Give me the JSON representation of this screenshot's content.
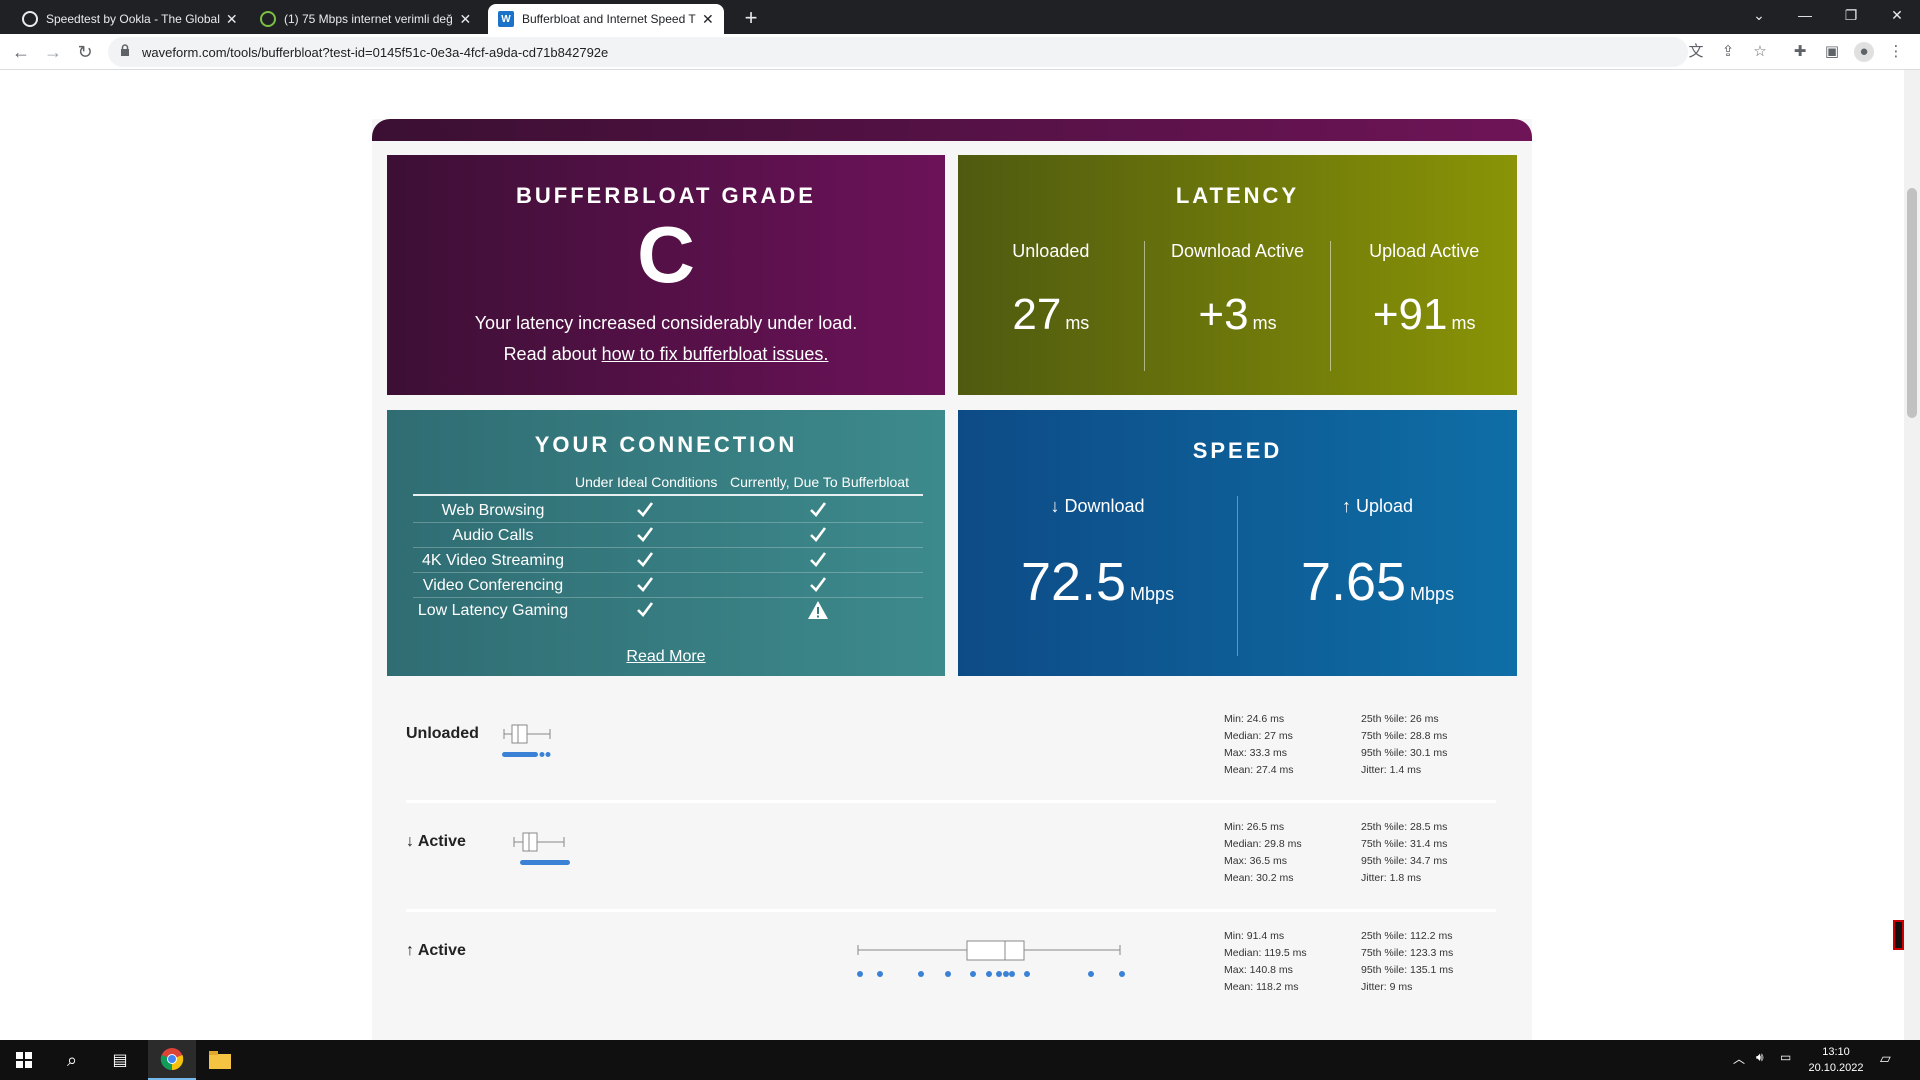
{
  "browser": {
    "tabs": [
      {
        "title": "Speedtest by Ookla - The Global",
        "active": false
      },
      {
        "title": "(1) 75 Mbps internet verimli değ",
        "active": false
      },
      {
        "title": "Bufferbloat and Internet Speed T",
        "active": true
      }
    ],
    "url": "waveform.com/tools/bufferbloat?test-id=0145f51c-0e3a-4fcf-a9da-cd71b842792e"
  },
  "grade": {
    "title": "BUFFERBLOAT GRADE",
    "letter": "C",
    "description": "Your latency increased considerably under load.",
    "read_prefix": "Read about ",
    "read_link": "how to fix bufferbloat issues."
  },
  "latency": {
    "title": "LATENCY",
    "columns": [
      {
        "label": "Unloaded",
        "value": "27",
        "unit": "ms"
      },
      {
        "label": "Download Active",
        "value": "+3",
        "unit": "ms"
      },
      {
        "label": "Upload Active",
        "value": "+91",
        "unit": "ms"
      }
    ]
  },
  "connection": {
    "title": "YOUR CONNECTION",
    "col_ideal": "Under Ideal Conditions",
    "col_current": "Currently, Due To Bufferbloat",
    "rows": [
      {
        "name": "Web Browsing",
        "ideal": "check",
        "current": "check"
      },
      {
        "name": "Audio Calls",
        "ideal": "check",
        "current": "check"
      },
      {
        "name": "4K Video Streaming",
        "ideal": "check",
        "current": "check"
      },
      {
        "name": "Video Conferencing",
        "ideal": "check",
        "current": "check"
      },
      {
        "name": "Low Latency Gaming",
        "ideal": "check",
        "current": "warning"
      }
    ],
    "read_more": "Read More"
  },
  "speed": {
    "title": "SPEED",
    "download_label": "↓ Download",
    "download_value": "72.5",
    "upload_label": "↑ Upload",
    "upload_value": "7.65",
    "unit": "Mbps"
  },
  "details": [
    {
      "label": "Unloaded",
      "stats_left": [
        "Min: 24.6 ms",
        "Median: 27 ms",
        "Max: 33.3 ms",
        "Mean: 27.4 ms"
      ],
      "stats_right": [
        "25th %ile: 26 ms",
        "75th %ile: 28.8 ms",
        "95th %ile: 30.1 ms",
        "Jitter: 1.4 ms"
      ]
    },
    {
      "label": "↓ Active",
      "stats_left": [
        "Min: 26.5 ms",
        "Median: 29.8 ms",
        "Max: 36.5 ms",
        "Mean: 30.2 ms"
      ],
      "stats_right": [
        "25th %ile: 28.5 ms",
        "75th %ile: 31.4 ms",
        "95th %ile: 34.7 ms",
        "Jitter: 1.8 ms"
      ]
    },
    {
      "label": "↑ Active",
      "stats_left": [
        "Min: 91.4 ms",
        "Median: 119.5 ms",
        "Max: 140.8 ms",
        "Mean: 118.2 ms"
      ],
      "stats_right": [
        "25th %ile: 112.2 ms",
        "75th %ile: 123.3 ms",
        "95th %ile: 135.1 ms",
        "Jitter: 9 ms"
      ]
    }
  ],
  "taskbar": {
    "time": "13:10",
    "date": "20.10.2022"
  },
  "colors": {
    "grade_bg": "#5a1150",
    "latency_bg": "#6e7a0b",
    "connection_bg": "#37797d",
    "speed_bg": "#0e5c97",
    "plot_blue": "#3b82d6"
  }
}
